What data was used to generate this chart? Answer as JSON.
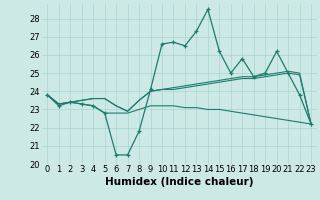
{
  "xlabel": "Humidex (Indice chaleur)",
  "background_color": "#cce9e5",
  "grid_color": "#aad4cf",
  "line_color": "#1e7a6e",
  "x_values": [
    0,
    1,
    2,
    3,
    4,
    5,
    6,
    7,
    8,
    9,
    10,
    11,
    12,
    13,
    14,
    15,
    16,
    17,
    18,
    19,
    20,
    21,
    22,
    23
  ],
  "line_main_y": [
    23.8,
    23.2,
    23.4,
    23.3,
    23.2,
    22.8,
    20.5,
    20.5,
    21.8,
    24.1,
    26.6,
    26.7,
    26.5,
    27.3,
    28.5,
    26.2,
    25.0,
    25.8,
    24.8,
    25.0,
    26.2,
    25.0,
    23.8,
    22.2
  ],
  "line_upper_y": [
    23.8,
    23.3,
    23.4,
    23.5,
    23.6,
    23.6,
    23.2,
    22.9,
    23.5,
    24.0,
    24.1,
    24.2,
    24.3,
    24.4,
    24.5,
    24.6,
    24.7,
    24.8,
    24.8,
    24.9,
    25.0,
    25.1,
    25.0,
    22.2
  ],
  "line_mid_y": [
    23.8,
    23.3,
    23.4,
    23.5,
    23.6,
    23.6,
    23.2,
    22.9,
    23.5,
    24.0,
    24.1,
    24.1,
    24.2,
    24.3,
    24.4,
    24.5,
    24.6,
    24.7,
    24.7,
    24.8,
    24.9,
    25.0,
    24.9,
    22.2
  ],
  "line_lower_y": [
    23.8,
    23.3,
    23.4,
    23.3,
    23.2,
    22.8,
    22.8,
    22.8,
    23.0,
    23.2,
    23.2,
    23.2,
    23.1,
    23.1,
    23.0,
    23.0,
    22.9,
    22.8,
    22.7,
    22.6,
    22.5,
    22.4,
    22.3,
    22.2
  ],
  "ylim": [
    20,
    28.8
  ],
  "yticks": [
    20,
    21,
    22,
    23,
    24,
    25,
    26,
    27,
    28
  ],
  "xticks": [
    0,
    1,
    2,
    3,
    4,
    5,
    6,
    7,
    8,
    9,
    10,
    11,
    12,
    13,
    14,
    15,
    16,
    17,
    18,
    19,
    20,
    21,
    22,
    23
  ],
  "tick_fontsize": 6,
  "label_fontsize": 7.5
}
